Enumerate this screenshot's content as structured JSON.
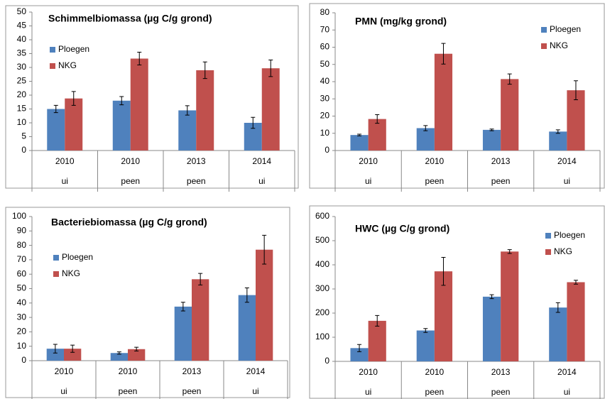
{
  "chart_data": [
    {
      "type": "bar",
      "title": "Schimmelbiomassa (µg C/g grond)",
      "categories": [
        "2010",
        "2010",
        "2013",
        "2014"
      ],
      "subcategories": [
        "ui",
        "peen",
        "peen",
        "ui"
      ],
      "ylim": [
        0,
        50
      ],
      "yticks": [
        0,
        5,
        10,
        15,
        20,
        25,
        30,
        35,
        40,
        45,
        50
      ],
      "series": [
        {
          "name": "Ploegen",
          "color": "#4f81bd",
          "values": [
            15,
            18,
            14.5,
            10
          ],
          "errors": [
            1.3,
            1.5,
            1.7,
            2
          ]
        },
        {
          "name": "NKG",
          "color": "#c0504d",
          "values": [
            18.8,
            33.2,
            29,
            29.7
          ],
          "errors": [
            2.5,
            2.3,
            3,
            3
          ]
        }
      ]
    },
    {
      "type": "bar",
      "title": "PMN (mg/kg grond)",
      "categories": [
        "2010",
        "2010",
        "2013",
        "2014"
      ],
      "subcategories": [
        "ui",
        "peen",
        "peen",
        "ui"
      ],
      "ylim": [
        0,
        80
      ],
      "yticks": [
        0,
        10,
        20,
        30,
        40,
        50,
        60,
        70,
        80
      ],
      "series": [
        {
          "name": "Ploegen",
          "color": "#4f81bd",
          "values": [
            9,
            13,
            12,
            11
          ],
          "errors": [
            0.5,
            1.5,
            0.5,
            1
          ]
        },
        {
          "name": "NKG",
          "color": "#c0504d",
          "values": [
            18.3,
            56.2,
            41.5,
            35
          ],
          "errors": [
            2.5,
            6,
            3,
            5.5
          ]
        }
      ]
    },
    {
      "type": "bar",
      "title": "Bacteriebiomassa (µg C/g grond)",
      "categories": [
        "2010",
        "2010",
        "2013",
        "2014"
      ],
      "subcategories": [
        "ui",
        "peen",
        "peen",
        "ui"
      ],
      "ylim": [
        0,
        100
      ],
      "yticks": [
        0,
        10,
        20,
        30,
        40,
        50,
        60,
        70,
        80,
        90,
        100
      ],
      "series": [
        {
          "name": "Ploegen",
          "color": "#4f81bd",
          "values": [
            8.3,
            5.3,
            37.5,
            45.5
          ],
          "errors": [
            3,
            0.8,
            3,
            5
          ]
        },
        {
          "name": "NKG",
          "color": "#c0504d",
          "values": [
            8.3,
            8,
            56.5,
            77
          ],
          "errors": [
            2.5,
            1.3,
            4,
            10
          ]
        }
      ]
    },
    {
      "type": "bar",
      "title": "HWC (µg C/g grond)",
      "categories": [
        "2010",
        "2010",
        "2013",
        "2014"
      ],
      "subcategories": [
        "ui",
        "peen",
        "peen",
        "ui"
      ],
      "ylim": [
        0,
        600
      ],
      "yticks": [
        0,
        100,
        200,
        300,
        400,
        500,
        600
      ],
      "series": [
        {
          "name": "Ploegen",
          "color": "#4f81bd",
          "values": [
            55,
            128,
            268,
            223
          ],
          "errors": [
            15,
            8,
            8,
            20
          ]
        },
        {
          "name": "NKG",
          "color": "#c0504d",
          "values": [
            168,
            373,
            455,
            328
          ],
          "errors": [
            22,
            58,
            8,
            8
          ]
        }
      ]
    }
  ]
}
